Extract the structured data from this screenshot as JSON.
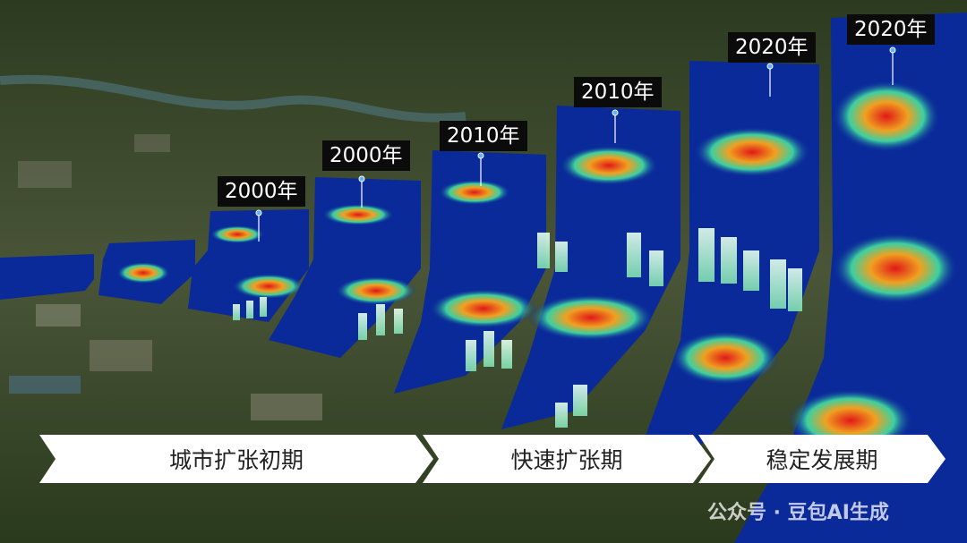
{
  "year_labels": [
    {
      "text": "2000年"
    },
    {
      "text": "2000年"
    },
    {
      "text": "2010年"
    },
    {
      "text": "2010年"
    },
    {
      "text": "2020年"
    },
    {
      "text": "2020年"
    }
  ],
  "stages": [
    {
      "label": "城市扩张初期"
    },
    {
      "label": "快速扩张期"
    },
    {
      "label": "稳定发展期"
    }
  ],
  "watermark": "公众号 · 豆包AI生成",
  "colors": {
    "terrain": "#3b4a2a",
    "heat_low": "#0a2a9a",
    "heat_mid": "#2ec4c4",
    "heat_high": "#e02020",
    "arrow_fill": "#ffffff"
  }
}
